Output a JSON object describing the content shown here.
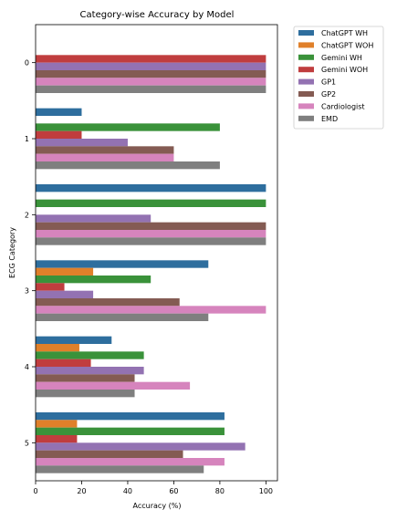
{
  "chart_data": {
    "type": "bar",
    "orientation": "horizontal",
    "title": "Category-wise Accuracy by Model",
    "xlabel": "Accuracy (%)",
    "ylabel": "ECG Category",
    "xlim": [
      0,
      105
    ],
    "xticks": [
      0,
      20,
      40,
      60,
      80,
      100
    ],
    "grid": false,
    "legend_placement": "outside-top-right",
    "categories": [
      "0",
      "1",
      "2",
      "3",
      "4",
      "5"
    ],
    "series": [
      {
        "name": "ChatGPT WH",
        "color": "#2e6e9e",
        "values": [
          0,
          20,
          100,
          75,
          33,
          82
        ]
      },
      {
        "name": "ChatGPT WOH",
        "color": "#e0802a",
        "values": [
          0,
          0,
          0,
          25,
          19,
          18
        ]
      },
      {
        "name": "Gemini WH",
        "color": "#3a923a",
        "values": [
          0,
          80,
          100,
          50,
          47,
          82
        ]
      },
      {
        "name": "Gemini WOH",
        "color": "#c03d3e",
        "values": [
          100,
          20,
          0,
          12.5,
          24,
          18
        ]
      },
      {
        "name": "GP1",
        "color": "#9372b2",
        "values": [
          100,
          40,
          50,
          25,
          47,
          91
        ]
      },
      {
        "name": "GP2",
        "color": "#845b53",
        "values": [
          100,
          60,
          100,
          62.5,
          43,
          64
        ]
      },
      {
        "name": "Cardiologist",
        "color": "#d684bd",
        "values": [
          100,
          60,
          100,
          100,
          67,
          82
        ]
      },
      {
        "name": "EMD",
        "color": "#7f7f7f",
        "values": [
          100,
          80,
          100,
          75,
          43,
          73
        ]
      }
    ]
  }
}
